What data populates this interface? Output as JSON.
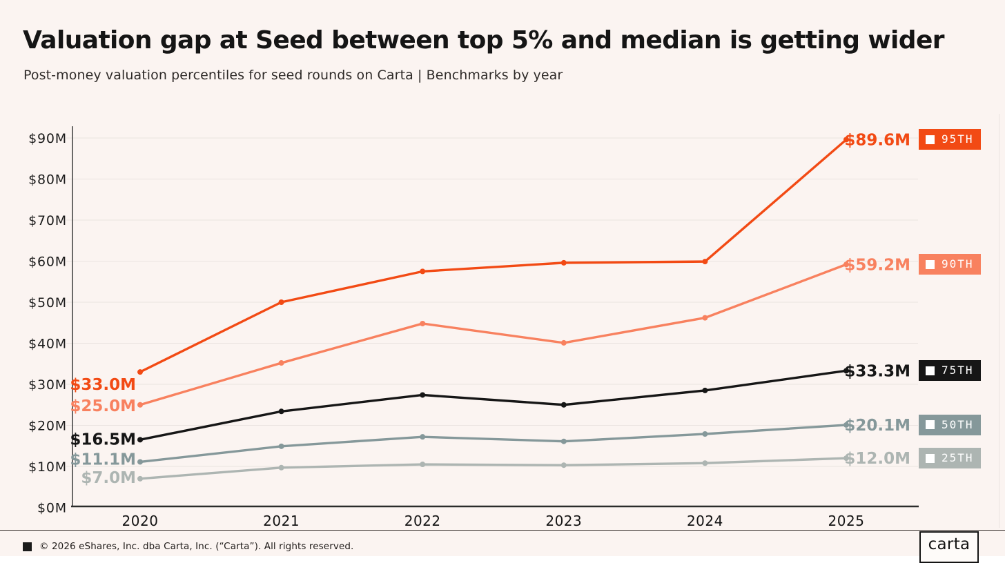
{
  "page": {
    "background": "#FBF4F1"
  },
  "header": {
    "title": "Valuation gap at Seed between top 5% and median is getting wider",
    "subtitle": "Post-money valuation percentiles for seed rounds on Carta | Benchmarks by year"
  },
  "chart_data": {
    "type": "line",
    "x": [
      2020,
      2021,
      2022,
      2023,
      2024,
      2025
    ],
    "x_tick_labels": [
      "2020",
      "2021",
      "2022",
      "2023",
      "2024",
      "2025"
    ],
    "ylim": [
      0,
      90
    ],
    "y_tick_step": 10,
    "y_tick_prefix": "$",
    "y_tick_suffix": "M",
    "grid": true,
    "legend_position": "right",
    "series": [
      {
        "name": "25TH",
        "color": "#ADB5B2",
        "values": [
          7.0,
          9.7,
          10.5,
          10.3,
          10.8,
          12.0
        ],
        "start_label": "$7.0M",
        "end_label": "$12.0M"
      },
      {
        "name": "50TH",
        "color": "#85989A",
        "values": [
          11.1,
          14.9,
          17.2,
          16.1,
          17.9,
          20.1
        ],
        "start_label": "$11.1M",
        "end_label": "$20.1M"
      },
      {
        "name": "75TH",
        "color": "#161616",
        "values": [
          16.5,
          23.4,
          27.4,
          25.0,
          28.5,
          33.3
        ],
        "start_label": "$16.5M",
        "end_label": "$33.3M"
      },
      {
        "name": "90TH",
        "color": "#F8815F",
        "values": [
          25.0,
          35.2,
          44.8,
          40.1,
          46.2,
          59.2
        ],
        "start_label": "$25.0M",
        "end_label": "$59.2M"
      },
      {
        "name": "95TH",
        "color": "#F24A14",
        "values": [
          33.0,
          50.0,
          57.5,
          59.6,
          59.9,
          89.6
        ],
        "start_label": "$33.0M",
        "end_label": "$89.6M"
      }
    ]
  },
  "footer": {
    "copyright": "© 2026 eShares, Inc. dba Carta, Inc. (“Carta”). All rights reserved.",
    "logo_text": "carta"
  }
}
